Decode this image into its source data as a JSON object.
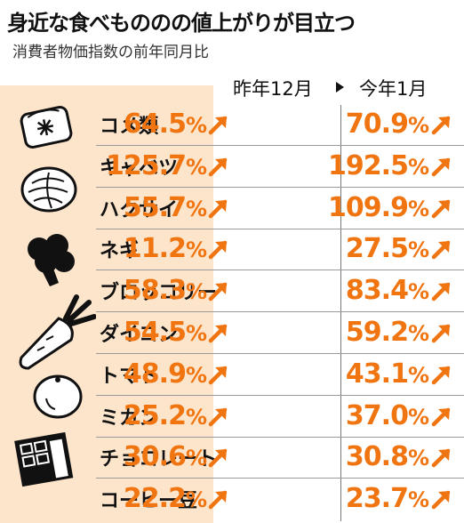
{
  "title": "身近な食べもののの値上がりが目立つ",
  "subtitle": "消費者物価指数の前年同月比",
  "colors": {
    "accent": "#f07410",
    "band": "#fde5cc"
  },
  "chart_data": {
    "type": "table",
    "columns": [
      "昨年12月",
      "今年1月"
    ],
    "rows": [
      {
        "name": "コメ類",
        "dec": "64.5",
        "jan": "70.9"
      },
      {
        "name": "キャベツ",
        "dec": "125.7",
        "jan": "192.5"
      },
      {
        "name": "ハクサイ",
        "dec": "55.7",
        "jan": "109.9"
      },
      {
        "name": "ネギ",
        "dec": "11.2",
        "jan": "27.5"
      },
      {
        "name": "ブロッコリー",
        "dec": "58.3",
        "jan": "83.4"
      },
      {
        "name": "ダイコン",
        "dec": "54.5",
        "jan": "59.2"
      },
      {
        "name": "トマト",
        "dec": "48.9",
        "jan": "43.1"
      },
      {
        "name": "ミカン",
        "dec": "25.2",
        "jan": "37.0"
      },
      {
        "name": "チョコレート",
        "dec": "30.6",
        "jan": "30.8"
      },
      {
        "name": "コーヒー豆",
        "dec": "22.2",
        "jan": "23.7"
      }
    ],
    "unit": "%",
    "trend": "up"
  },
  "icons": [
    "rice-bag-icon",
    "cabbage-icon",
    "broccoli-icon",
    "daikon-icon",
    "mandarin-icon",
    "chocolate-icon"
  ]
}
